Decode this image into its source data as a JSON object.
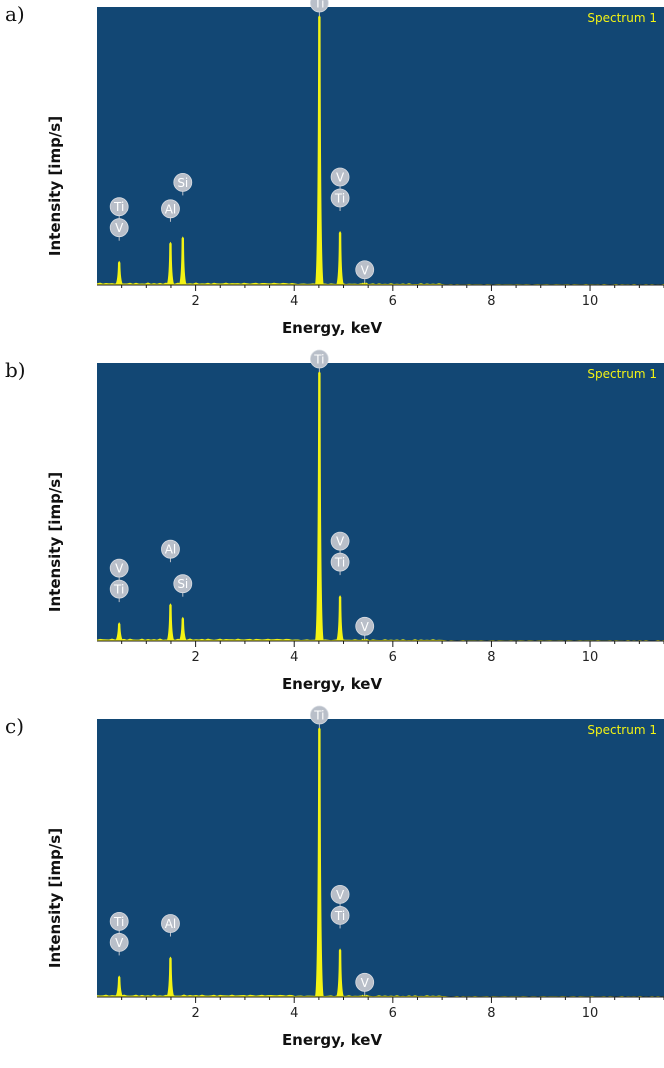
{
  "chart_data": [
    {
      "panel_label": "a)",
      "type": "area",
      "legend": "Spectrum 1",
      "xlabel": "Energy, keV",
      "ylabel": "Intensity [imp/s]",
      "xlim": [
        0,
        11.5
      ],
      "xticks": [
        "2",
        "4",
        "6",
        "8",
        "10"
      ],
      "colors": {
        "background": "#124774",
        "peak": "#f3f314",
        "legend": "#f3f314",
        "marker": "#b9bfc9",
        "axis": "#1a1a1a"
      },
      "peaks": [
        {
          "x": 0.45,
          "y": 0.09
        },
        {
          "x": 1.49,
          "y": 0.16
        },
        {
          "x": 1.74,
          "y": 0.18
        },
        {
          "x": 4.51,
          "y": 1.0
        },
        {
          "x": 4.93,
          "y": 0.2
        },
        {
          "x": 5.43,
          "y": 0.012
        }
      ],
      "labels": [
        {
          "text": "Ti",
          "x": 0.45,
          "row": 2
        },
        {
          "text": "V",
          "x": 0.45,
          "row": 1
        },
        {
          "text": "Al",
          "x": 1.49,
          "row": 1
        },
        {
          "text": "Si",
          "x": 1.74,
          "row": 2
        },
        {
          "text": "Ti",
          "x": 4.51,
          "row": 0
        },
        {
          "text": "V",
          "x": 4.93,
          "row": 2
        },
        {
          "text": "Ti",
          "x": 4.93,
          "row": 1
        },
        {
          "text": "V",
          "x": 5.43,
          "row": 0
        }
      ]
    },
    {
      "panel_label": "b)",
      "type": "area",
      "legend": "Spectrum 1",
      "xlabel": "Energy, keV",
      "ylabel": "Intensity [imp/s]",
      "xlim": [
        0,
        11.5
      ],
      "xticks": [
        "2",
        "4",
        "6",
        "8",
        "10"
      ],
      "colors": {
        "background": "#124774",
        "peak": "#f3f314",
        "legend": "#f3f314",
        "marker": "#b9bfc9",
        "axis": "#1a1a1a"
      },
      "peaks": [
        {
          "x": 0.45,
          "y": 0.07
        },
        {
          "x": 1.49,
          "y": 0.14
        },
        {
          "x": 1.74,
          "y": 0.09
        },
        {
          "x": 4.51,
          "y": 1.0
        },
        {
          "x": 4.93,
          "y": 0.17
        },
        {
          "x": 5.43,
          "y": 0.01
        }
      ],
      "labels": [
        {
          "text": "V",
          "x": 0.45,
          "row": 2
        },
        {
          "text": "Ti",
          "x": 0.45,
          "row": 1
        },
        {
          "text": "Al",
          "x": 1.49,
          "row": 2
        },
        {
          "text": "Si",
          "x": 1.74,
          "row": 1
        },
        {
          "text": "Ti",
          "x": 4.51,
          "row": 0
        },
        {
          "text": "V",
          "x": 4.93,
          "row": 2
        },
        {
          "text": "Ti",
          "x": 4.93,
          "row": 1
        },
        {
          "text": "V",
          "x": 5.43,
          "row": 0
        }
      ]
    },
    {
      "panel_label": "c)",
      "type": "area",
      "legend": "Spectrum 1",
      "xlabel": "Energy, keV",
      "ylabel": "Intensity [imp/s]",
      "xlim": [
        0,
        11.5
      ],
      "xticks": [
        "2",
        "4",
        "6",
        "8",
        "10"
      ],
      "colors": {
        "background": "#124774",
        "peak": "#f3f314",
        "legend": "#f3f314",
        "marker": "#b9bfc9",
        "axis": "#1a1a1a"
      },
      "peaks": [
        {
          "x": 0.45,
          "y": 0.08
        },
        {
          "x": 1.49,
          "y": 0.15
        },
        {
          "x": 4.51,
          "y": 1.0
        },
        {
          "x": 4.93,
          "y": 0.18
        },
        {
          "x": 5.43,
          "y": 0.01
        }
      ],
      "labels": [
        {
          "text": "Ti",
          "x": 0.45,
          "row": 2
        },
        {
          "text": "V",
          "x": 0.45,
          "row": 1
        },
        {
          "text": "Al",
          "x": 1.49,
          "row": 1
        },
        {
          "text": "Ti",
          "x": 4.51,
          "row": 0
        },
        {
          "text": "V",
          "x": 4.93,
          "row": 2
        },
        {
          "text": "Ti",
          "x": 4.93,
          "row": 1
        },
        {
          "text": "V",
          "x": 5.43,
          "row": 0
        }
      ]
    }
  ]
}
